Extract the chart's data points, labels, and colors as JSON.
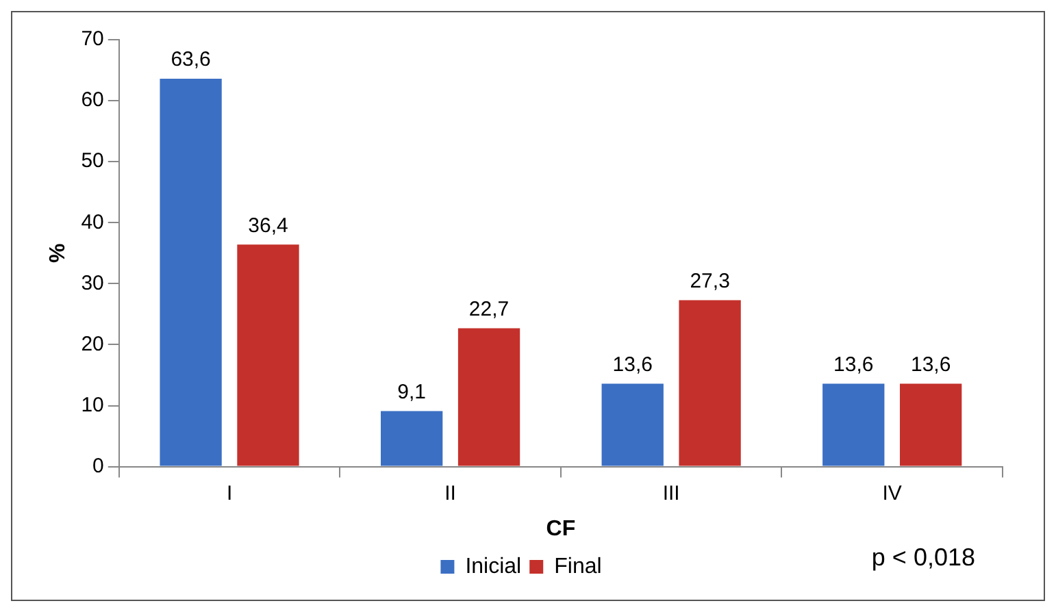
{
  "chart_data": {
    "type": "bar",
    "categories": [
      "I",
      "II",
      "III",
      "IV"
    ],
    "xlabel": "CF",
    "ylabel": "%",
    "series": [
      {
        "name": "Inicial",
        "color": "#3b6fc3",
        "values": [
          63.6,
          9.1,
          13.6,
          13.6
        ],
        "value_labels": [
          "63,6",
          "9,1",
          "13,6",
          "13,6"
        ]
      },
      {
        "name": "Final",
        "color": "#c4302b",
        "values": [
          36.4,
          22.7,
          27.3,
          13.6
        ],
        "value_labels": [
          "36,4",
          "22,7",
          "27,3",
          "13,6"
        ]
      }
    ],
    "ylim": [
      0,
      70
    ],
    "yticks": [
      0,
      10,
      20,
      30,
      40,
      50,
      60,
      70
    ],
    "grid": false,
    "legend": "bottom",
    "annotations": [
      "p < 0,018"
    ]
  }
}
